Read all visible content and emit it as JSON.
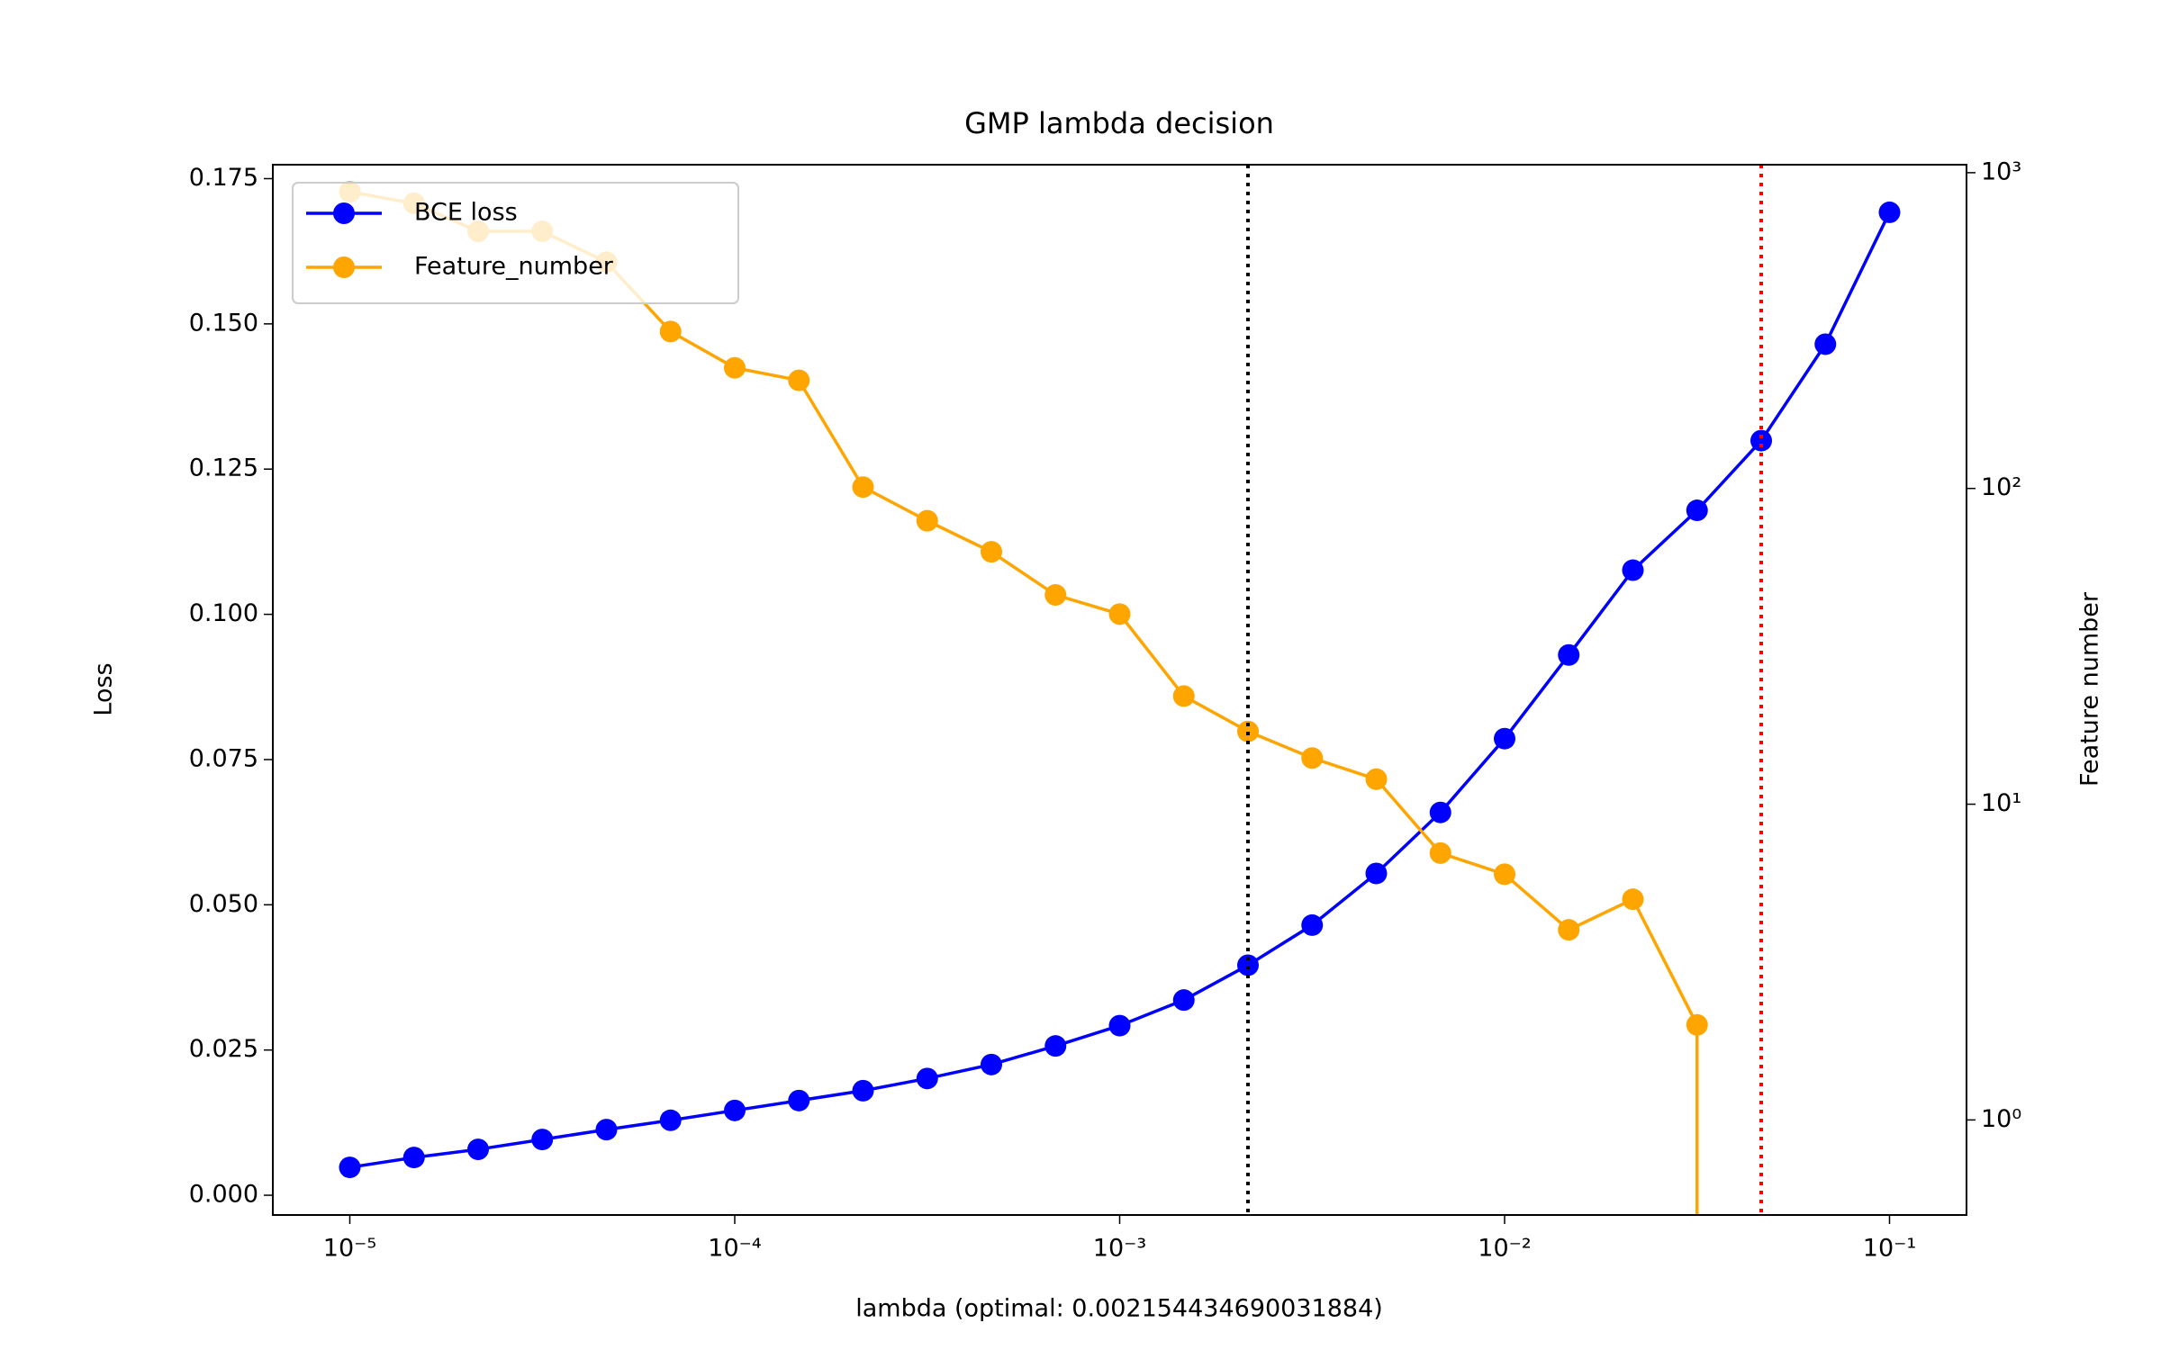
{
  "chart_data": {
    "type": "line",
    "title": "GMP lambda decision",
    "xlabel": "lambda (optimal: 0.002154434690031884)",
    "ylabel": "Loss",
    "y2label": "Feature number",
    "xscale": "log",
    "y2scale": "log",
    "x": [
      1e-05,
      1.4678e-05,
      2.1544e-05,
      3.1623e-05,
      4.6416e-05,
      6.8129e-05,
      0.0001,
      0.00014678,
      0.00021544,
      0.00031623,
      0.00046416,
      0.00068129,
      0.001,
      0.0014678,
      0.0021544,
      0.0031623,
      0.0046416,
      0.0068129,
      0.01,
      0.014678,
      0.021544,
      0.031623,
      0.046416,
      0.068129,
      0.1
    ],
    "series": [
      {
        "name": "BCE loss",
        "color": "#0000ff",
        "axis": "y",
        "values": [
          0.0048,
          0.0065,
          0.0079,
          0.0096,
          0.0113,
          0.0129,
          0.0146,
          0.0163,
          0.018,
          0.0201,
          0.0225,
          0.0257,
          0.0292,
          0.0336,
          0.0396,
          0.0465,
          0.0554,
          0.0659,
          0.0786,
          0.093,
          0.1076,
          0.1179,
          0.1299,
          0.1465,
          0.1692
        ]
      },
      {
        "name": "Feature_number",
        "color": "#ffa500",
        "axis": "y2",
        "values": [
          870,
          800,
          652,
          652,
          521,
          314,
          241,
          220,
          101,
          79,
          63,
          46,
          40,
          22,
          17,
          14,
          12,
          7,
          6,
          4,
          5,
          2,
          0,
          0,
          0
        ]
      }
    ],
    "vlines": [
      {
        "x": 0.002154434690031884,
        "color": "#000000"
      },
      {
        "x": 0.046416,
        "color": "#ff0000"
      }
    ],
    "xlim": [
      6.3096e-06,
      0.15849
    ],
    "ylim": [
      -0.0034,
      0.1774
    ],
    "y2lim": [
      0.5,
      1060
    ],
    "xticks": [
      {
        "value": 1e-05,
        "label": "10⁻⁵"
      },
      {
        "value": 0.0001,
        "label": "10⁻⁴"
      },
      {
        "value": 0.001,
        "label": "10⁻³"
      },
      {
        "value": 0.01,
        "label": "10⁻²"
      },
      {
        "value": 0.1,
        "label": "10⁻¹"
      }
    ],
    "yticks": [
      {
        "value": 0,
        "label": "0.000"
      },
      {
        "value": 0.025,
        "label": "0.025"
      },
      {
        "value": 0.05,
        "label": "0.050"
      },
      {
        "value": 0.075,
        "label": "0.075"
      },
      {
        "value": 0.1,
        "label": "0.100"
      },
      {
        "value": 0.125,
        "label": "0.125"
      },
      {
        "value": 0.15,
        "label": "0.150"
      },
      {
        "value": 0.175,
        "label": "0.175"
      }
    ],
    "y2ticks": [
      {
        "value": 1,
        "label": "10⁰"
      },
      {
        "value": 10,
        "label": "10¹"
      },
      {
        "value": 100,
        "label": "10²"
      },
      {
        "value": 1000,
        "label": "10³"
      }
    ],
    "legend": "upper left",
    "grid": false
  }
}
